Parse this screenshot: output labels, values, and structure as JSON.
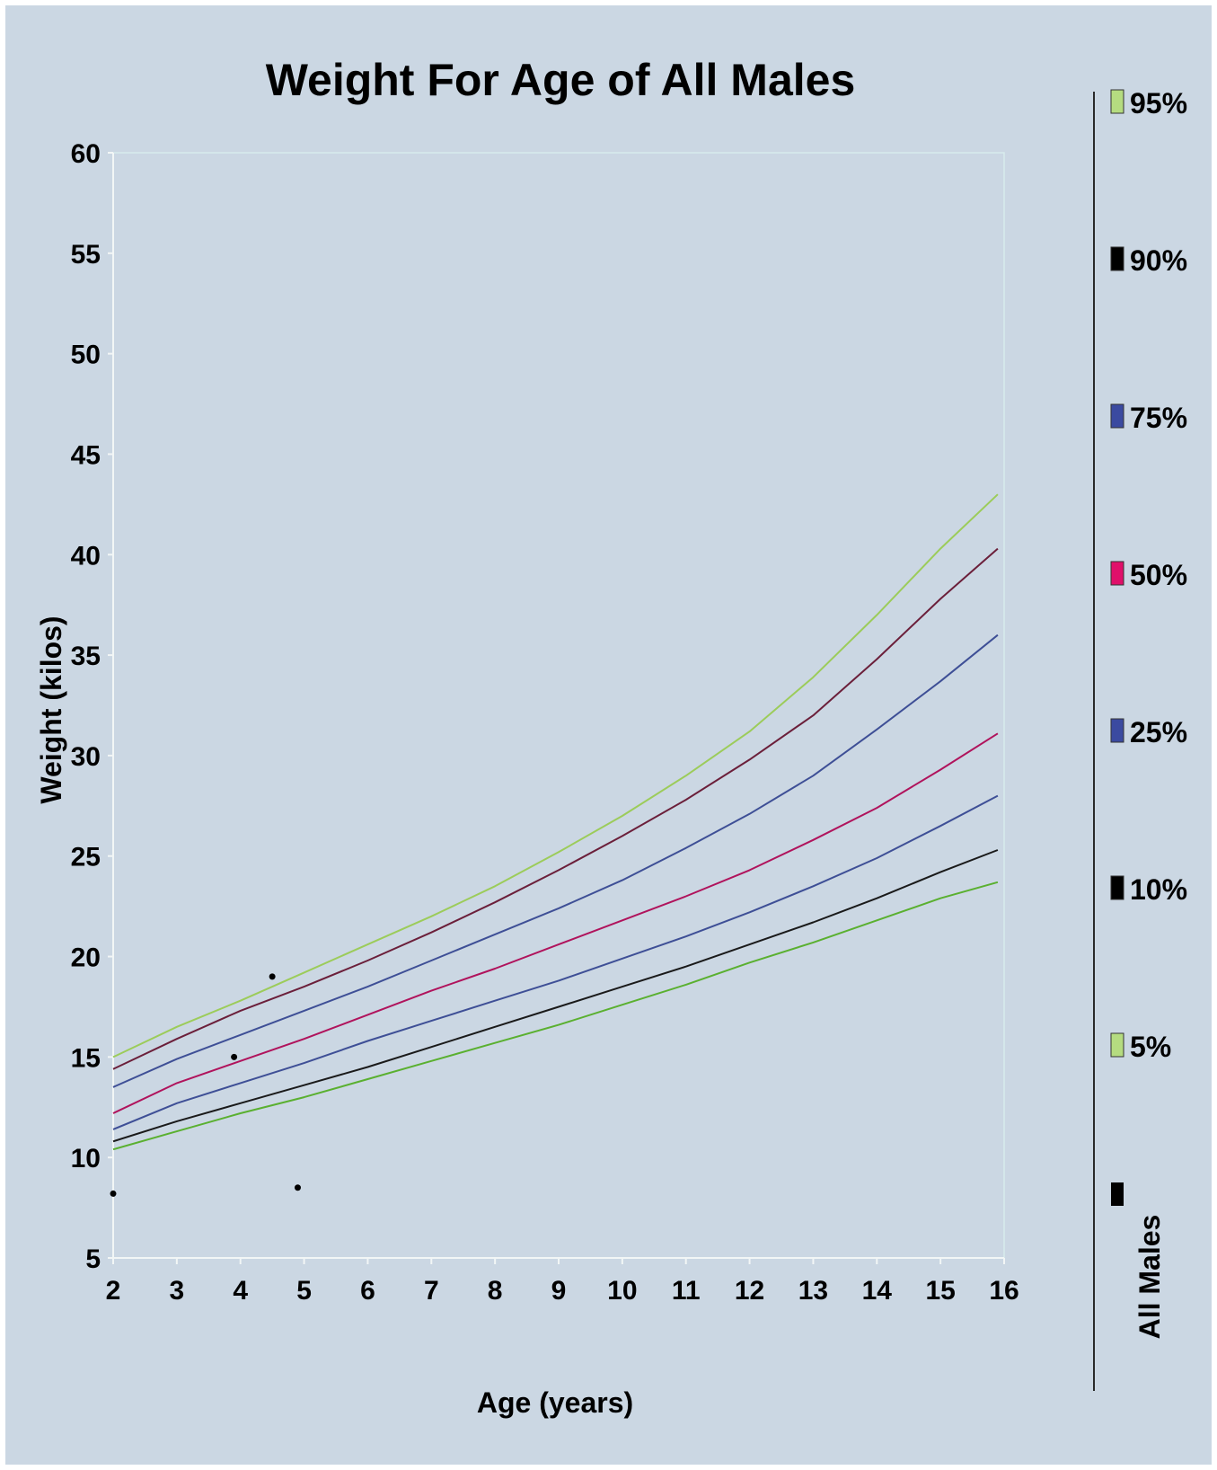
{
  "chart_data": {
    "type": "line",
    "title": "Weight For Age of All Males",
    "xlabel": "Age (years)",
    "ylabel": "Weight (kilos)",
    "xlim": [
      2,
      16
    ],
    "ylim": [
      5,
      60
    ],
    "x_ticks": [
      2,
      3,
      4,
      5,
      6,
      7,
      8,
      9,
      10,
      11,
      12,
      13,
      14,
      15,
      16
    ],
    "y_ticks": [
      5,
      10,
      15,
      20,
      25,
      30,
      35,
      40,
      45,
      50,
      55,
      60
    ],
    "grid": false,
    "legend_title": "All Males",
    "legend_position": "right",
    "x": [
      2,
      3,
      4,
      5,
      6,
      7,
      8,
      9,
      10,
      11,
      12,
      13,
      14,
      15,
      15.9
    ],
    "series": [
      {
        "name": "95%",
        "color": "#9ccc5a",
        "values": [
          15.0,
          16.5,
          17.8,
          19.2,
          20.6,
          22.0,
          23.5,
          25.2,
          27.0,
          29.0,
          31.2,
          33.9,
          37.0,
          40.3,
          43.0
        ]
      },
      {
        "name": "90%",
        "color": "#6b1f3a",
        "values": [
          14.4,
          15.9,
          17.3,
          18.5,
          19.8,
          21.2,
          22.7,
          24.3,
          26.0,
          27.8,
          29.8,
          32.0,
          34.8,
          37.8,
          40.3
        ]
      },
      {
        "name": "75%",
        "color": "#3e4f96",
        "values": [
          13.5,
          14.9,
          16.1,
          17.3,
          18.5,
          19.8,
          21.1,
          22.4,
          23.8,
          25.4,
          27.1,
          29.0,
          31.3,
          33.7,
          36.0
        ]
      },
      {
        "name": "50%",
        "color": "#b0135c",
        "values": [
          12.2,
          13.7,
          14.8,
          15.9,
          17.1,
          18.3,
          19.4,
          20.6,
          21.8,
          23.0,
          24.3,
          25.8,
          27.4,
          29.3,
          31.1
        ]
      },
      {
        "name": "25%",
        "color": "#3e4f96",
        "values": [
          11.4,
          12.7,
          13.7,
          14.7,
          15.8,
          16.8,
          17.8,
          18.8,
          19.9,
          21.0,
          22.2,
          23.5,
          24.9,
          26.5,
          28.0
        ]
      },
      {
        "name": "10%",
        "color": "#1a1a1a",
        "values": [
          10.8,
          11.8,
          12.7,
          13.6,
          14.5,
          15.5,
          16.5,
          17.5,
          18.5,
          19.5,
          20.6,
          21.7,
          22.9,
          24.2,
          25.3
        ]
      },
      {
        "name": "5%",
        "color": "#5ab030",
        "values": [
          10.4,
          11.3,
          12.2,
          13.0,
          13.9,
          14.8,
          15.7,
          16.6,
          17.6,
          18.6,
          19.7,
          20.7,
          21.8,
          22.9,
          23.7
        ]
      }
    ],
    "scatter_points": [
      {
        "x": 2.0,
        "y": 8.2
      },
      {
        "x": 3.9,
        "y": 15.0
      },
      {
        "x": 4.5,
        "y": 19.0
      },
      {
        "x": 4.9,
        "y": 8.5
      }
    ],
    "legend_colors": {
      "95%": "#b5dc80",
      "90%": "#000000",
      "75%": "#3b4aa0",
      "50%": "#e0106a",
      "25%": "#3b4aa0",
      "10%": "#000000",
      "5%": "#b5dc80",
      "All Males": "#000000"
    }
  }
}
